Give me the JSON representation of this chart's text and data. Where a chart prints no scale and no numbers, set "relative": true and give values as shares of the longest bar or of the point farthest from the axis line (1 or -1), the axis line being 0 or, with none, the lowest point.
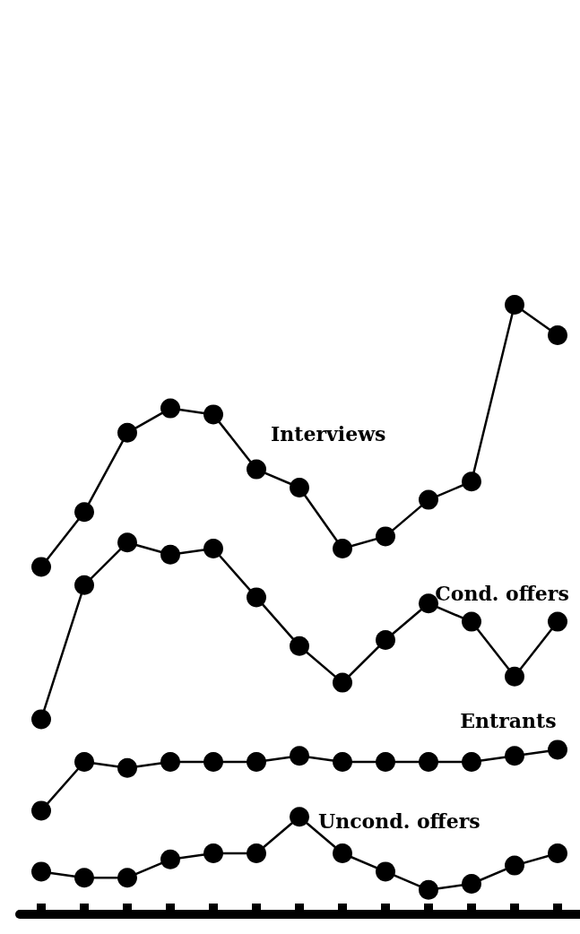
{
  "chart_data": {
    "type": "line",
    "relative": true,
    "categories": [
      null,
      null,
      null,
      null,
      null,
      null,
      null,
      null,
      null,
      null,
      null,
      null,
      null
    ],
    "series": [
      {
        "name": "Interviews",
        "color": "#000000",
        "values": [
          0.57,
          0.66,
          0.79,
          0.83,
          0.82,
          0.73,
          0.7,
          0.6,
          0.62,
          0.68,
          0.71,
          1,
          0.95
        ]
      },
      {
        "name": "Cond. offers",
        "color": "#000000",
        "values": [
          0.32,
          0.54,
          0.61,
          0.59,
          0.6,
          0.52,
          0.44,
          0.38,
          0.45,
          0.51,
          0.48,
          0.39,
          0.48
        ]
      },
      {
        "name": "Entrants",
        "color": "#000000",
        "values": [
          0.17,
          0.25,
          0.24,
          0.25,
          0.25,
          0.25,
          0.26,
          0.25,
          0.25,
          0.25,
          0.25,
          0.26,
          0.27
        ]
      },
      {
        "name": "Uncond. offers",
        "color": "#000000",
        "values": [
          0.07,
          0.06,
          0.06,
          0.09,
          0.1,
          0.1,
          0.16,
          0.1,
          0.07,
          0.04,
          0.05,
          0.08,
          0.1
        ]
      }
    ],
    "marker": "circle",
    "line_style": "solid",
    "grid": false,
    "legend": false
  }
}
